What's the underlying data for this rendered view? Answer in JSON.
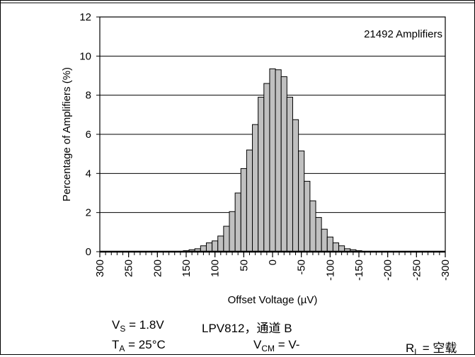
{
  "chart_data": {
    "type": "bar",
    "title": "",
    "xlabel": "Offset Voltage (µV)",
    "ylabel": "Percentage of Amplifiers (%)",
    "annotation": "21492 Amplifiers",
    "x_direction": "descending",
    "xlim": [
      300,
      -300
    ],
    "ylim": [
      0,
      12
    ],
    "x_ticks": [
      "300",
      "250",
      "200",
      "150",
      "100",
      "50",
      "0",
      "-50",
      "-100",
      "-150",
      "-200",
      "-250",
      "-300"
    ],
    "y_ticks": [
      "0",
      "2",
      "4",
      "6",
      "8",
      "10",
      "12"
    ],
    "grid": "horizontal",
    "bar_color": "#c0c0c0",
    "bins": [
      {
        "x": 150,
        "y": 0.05
      },
      {
        "x": 140,
        "y": 0.1
      },
      {
        "x": 130,
        "y": 0.15
      },
      {
        "x": 120,
        "y": 0.3
      },
      {
        "x": 110,
        "y": 0.45
      },
      {
        "x": 100,
        "y": 0.55
      },
      {
        "x": 90,
        "y": 0.8
      },
      {
        "x": 80,
        "y": 1.3
      },
      {
        "x": 70,
        "y": 2.05
      },
      {
        "x": 60,
        "y": 3.0
      },
      {
        "x": 50,
        "y": 4.25
      },
      {
        "x": 40,
        "y": 5.2
      },
      {
        "x": 30,
        "y": 6.5
      },
      {
        "x": 20,
        "y": 7.9
      },
      {
        "x": 10,
        "y": 8.6
      },
      {
        "x": 0,
        "y": 9.35
      },
      {
        "x": -10,
        "y": 9.3
      },
      {
        "x": -20,
        "y": 8.95
      },
      {
        "x": -30,
        "y": 7.9
      },
      {
        "x": -40,
        "y": 6.75
      },
      {
        "x": -50,
        "y": 5.15
      },
      {
        "x": -60,
        "y": 3.6
      },
      {
        "x": -70,
        "y": 2.6
      },
      {
        "x": -80,
        "y": 1.75
      },
      {
        "x": -90,
        "y": 1.15
      },
      {
        "x": -100,
        "y": 0.75
      },
      {
        "x": -110,
        "y": 0.45
      },
      {
        "x": -120,
        "y": 0.3
      },
      {
        "x": -130,
        "y": 0.15
      },
      {
        "x": -140,
        "y": 0.1
      },
      {
        "x": -150,
        "y": 0.05
      }
    ]
  },
  "conditions": {
    "vs_label": "V",
    "vs_sub": "S",
    "vs_value": " = 1.8V",
    "device": "LPV812，通道 B",
    "ta_label": "T",
    "ta_sub": "A",
    "ta_value": " = 25°C",
    "vcm_label": "V",
    "vcm_sub": "CM",
    "vcm_value": " = V-",
    "rl_label": "R",
    "rl_sub": "L",
    "rl_value": " = 空载"
  }
}
